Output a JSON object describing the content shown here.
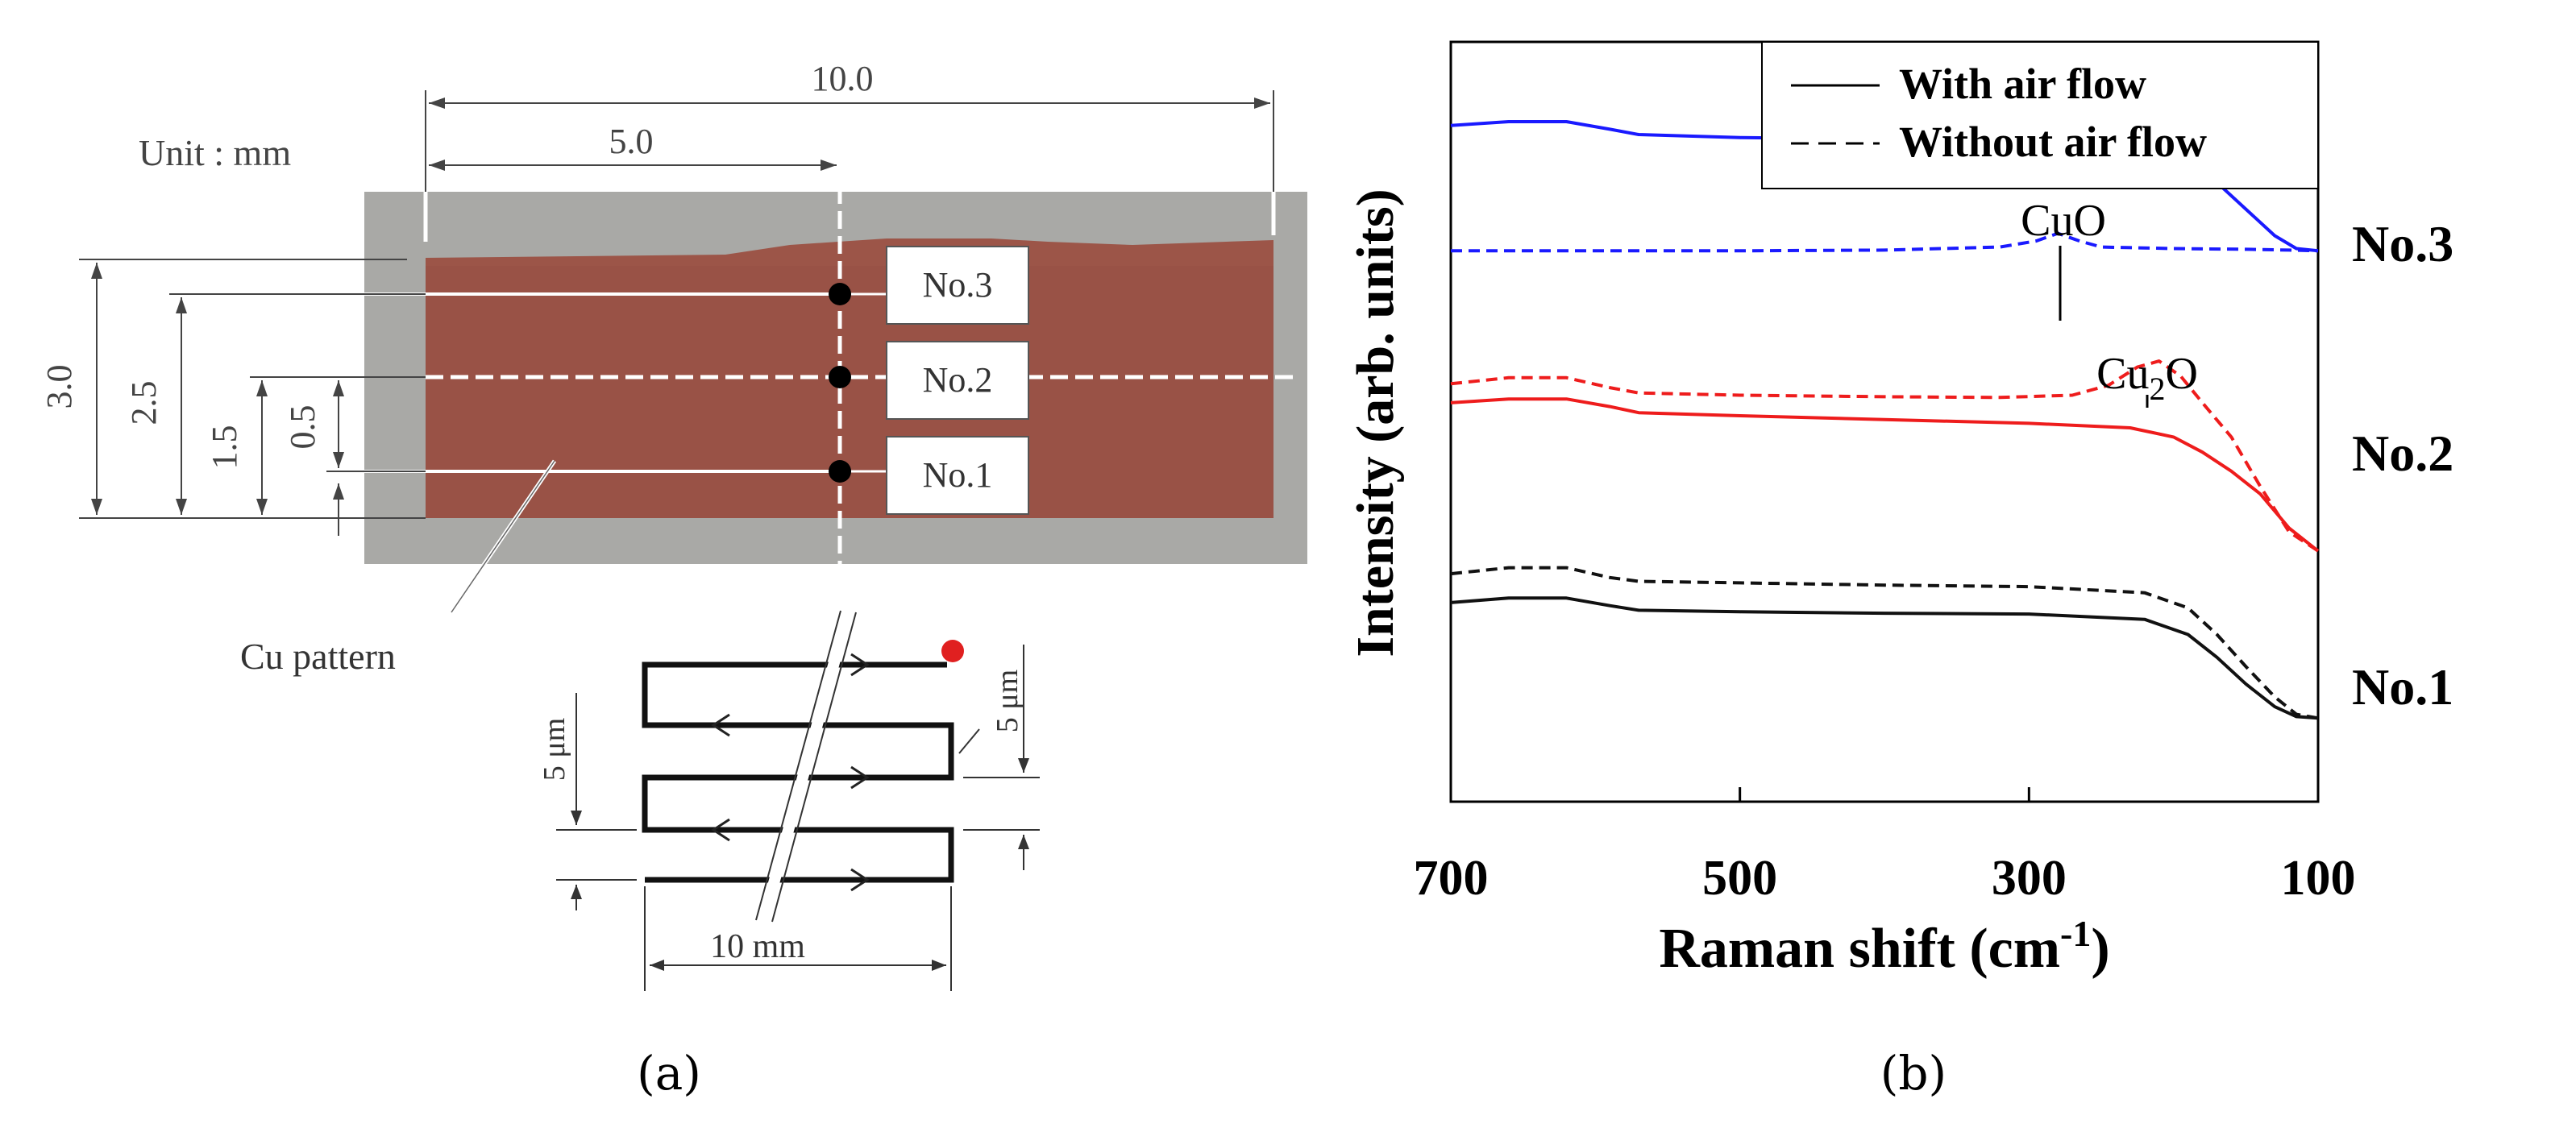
{
  "panel_a": {
    "label": "(a)",
    "unit_label": "Unit : mm",
    "dim_top": "10.0",
    "dim_mid": "5.0",
    "dim_left": [
      "3.0",
      "2.5",
      "1.5",
      "0.5"
    ],
    "points": [
      "No.3",
      "No.2",
      "No.1"
    ],
    "pattern_label": "Cu pattern",
    "meander_width": "10 mm",
    "meander_pitch_left": "5 μm",
    "meander_pitch_right": "5 μm",
    "colors": {
      "copper": "#9c5548",
      "substrate": "#a9a9a6",
      "marker": "#e02020"
    }
  },
  "panel_b": {
    "label": "(b)",
    "point_labels": [
      "No.3",
      "No.2",
      "No.1"
    ],
    "annotations": {
      "cuo": "CuO",
      "cu2o_base": "Cu",
      "cu2o_sub": "2",
      "cu2o_end": "O"
    }
  },
  "chart_data": {
    "type": "line",
    "title": "",
    "xlabel": "Raman shift (cm",
    "xlabel_sup": "-1",
    "xlabel_end": ")",
    "ylabel": "Intensity (arb. units)",
    "xlim": [
      700,
      100
    ],
    "x_ticks": [
      700,
      500,
      300,
      100
    ],
    "ylim": [
      0,
      10
    ],
    "legend": {
      "position": "top-right",
      "entries": [
        {
          "label": "With air flow",
          "style": "solid"
        },
        {
          "label": "Without air flow",
          "style": "dashed"
        }
      ]
    },
    "series": [
      {
        "point": "No.3",
        "style": "solid",
        "color": "#1a1aff",
        "x": [
          700,
          660,
          620,
          590,
          570,
          500,
          400,
          300,
          220,
          190,
          170,
          150,
          130,
          115,
          100
        ],
        "y": [
          8.9,
          8.95,
          8.95,
          8.85,
          8.78,
          8.74,
          8.72,
          8.7,
          8.6,
          8.4,
          8.15,
          7.8,
          7.45,
          7.28,
          7.25
        ]
      },
      {
        "point": "No.3",
        "style": "dashed",
        "color": "#1a1aff",
        "x": [
          700,
          600,
          500,
          400,
          320,
          295,
          280,
          265,
          250,
          200,
          150,
          120,
          100
        ],
        "y": [
          7.25,
          7.25,
          7.25,
          7.26,
          7.3,
          7.38,
          7.48,
          7.38,
          7.3,
          7.28,
          7.27,
          7.26,
          7.25
        ]
      },
      {
        "point": "No.2",
        "style": "solid",
        "color": "#ee1c1c",
        "x": [
          700,
          660,
          620,
          590,
          570,
          500,
          400,
          300,
          230,
          200,
          180,
          160,
          140,
          120,
          100
        ],
        "y": [
          5.25,
          5.3,
          5.3,
          5.2,
          5.12,
          5.08,
          5.03,
          4.98,
          4.92,
          4.8,
          4.6,
          4.35,
          4.05,
          3.6,
          3.3
        ]
      },
      {
        "point": "No.2",
        "style": "dashed",
        "color": "#ee1c1c",
        "x": [
          700,
          660,
          620,
          590,
          570,
          500,
          400,
          320,
          270,
          245,
          225,
          210,
          195,
          180,
          160,
          140,
          120,
          100
        ],
        "y": [
          5.5,
          5.58,
          5.58,
          5.45,
          5.38,
          5.35,
          5.33,
          5.32,
          5.35,
          5.48,
          5.72,
          5.8,
          5.6,
          5.25,
          4.8,
          4.15,
          3.55,
          3.3
        ]
      },
      {
        "point": "No.1",
        "style": "solid",
        "color": "#111111",
        "x": [
          700,
          660,
          620,
          590,
          570,
          500,
          400,
          300,
          220,
          190,
          170,
          150,
          130,
          115,
          100
        ],
        "y": [
          2.62,
          2.68,
          2.68,
          2.58,
          2.52,
          2.5,
          2.48,
          2.47,
          2.4,
          2.2,
          1.9,
          1.55,
          1.25,
          1.12,
          1.1
        ]
      },
      {
        "point": "No.1",
        "style": "dashed",
        "color": "#111111",
        "x": [
          700,
          660,
          620,
          590,
          570,
          500,
          400,
          300,
          220,
          190,
          170,
          150,
          130,
          115,
          100
        ],
        "y": [
          3.0,
          3.08,
          3.08,
          2.95,
          2.9,
          2.88,
          2.85,
          2.83,
          2.75,
          2.55,
          2.2,
          1.78,
          1.38,
          1.15,
          1.1
        ]
      }
    ]
  }
}
